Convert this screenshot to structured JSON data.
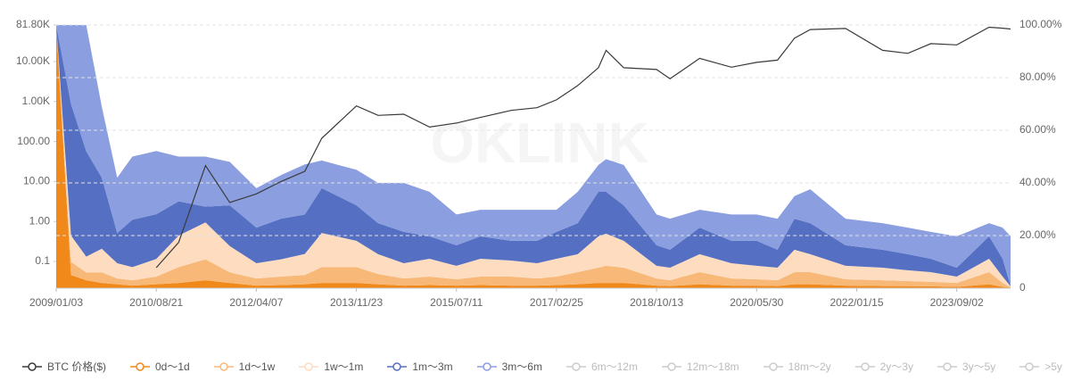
{
  "chart_data": {
    "type": "area",
    "watermark": "OKLINK",
    "x": [
      "2009/01/03",
      "2009/04/01",
      "2009/07/01",
      "2009/10/01",
      "2010/01/01",
      "2010/04/01",
      "2010/08/21",
      "2011/01/01",
      "2011/06/10",
      "2011/11/01",
      "2012/04/07",
      "2012/09/01",
      "2013/01/20",
      "2013/05/01",
      "2013/11/23",
      "2014/04/01",
      "2014/09/01",
      "2015/02/01",
      "2015/07/11",
      "2015/12/01",
      "2016/06/01",
      "2016/11/01",
      "2017/02/25",
      "2017/07/01",
      "2017/11/01",
      "2017/12/17",
      "2018/04/01",
      "2018/10/13",
      "2019/01/01",
      "2019/06/26",
      "2020/01/01",
      "2020/05/30",
      "2020/10/01",
      "2021/01/10",
      "2021/04/14",
      "2021/11/10",
      "2022/06/18",
      "2022/11/15",
      "2023/04/01",
      "2023/09/02",
      "2024/03/12",
      "2024/06/01",
      "2024/07/18"
    ],
    "xlim": [
      "2009/01/03",
      "2024/07/18"
    ],
    "xticks": [
      "2009/01/03",
      "2010/08/21",
      "2012/04/07",
      "2013/11/23",
      "2015/07/11",
      "2017/02/25",
      "2018/10/13",
      "2020/05/30",
      "2022/01/15",
      "2023/09/02"
    ],
    "log_y": true,
    "ylim": [
      0.0215,
      81800
    ],
    "yticks": [
      0.1,
      {
        "value": 1,
        "label": "1.00"
      },
      {
        "value": 10,
        "label": "10.00"
      },
      {
        "value": 100,
        "label": "100.00"
      },
      {
        "value": 1000,
        "label": "1.00K"
      },
      {
        "value": 10000,
        "label": "10.00K"
      },
      {
        "value": 81800,
        "label": "81.80K"
      }
    ],
    "y2lim": [
      0,
      100
    ],
    "y2ticks": [
      0,
      {
        "value": 20,
        "label": "20.00%"
      },
      {
        "value": 40,
        "label": "40.00%"
      },
      {
        "value": 60,
        "label": "60.00%"
      },
      {
        "value": 80,
        "label": "80.00%"
      },
      {
        "value": 100,
        "label": "100.00%"
      }
    ],
    "grid": true,
    "series": [
      {
        "name": "BTC 价格($)",
        "color": "#3a3a3a",
        "axis": "y",
        "values": [
          null,
          null,
          null,
          null,
          null,
          null,
          0.07,
          0.3,
          25,
          3,
          4.9,
          10,
          18,
          120,
          775,
          450,
          480,
          230,
          290,
          400,
          600,
          700,
          1100,
          2500,
          7000,
          19000,
          7000,
          6300,
          3700,
          12000,
          7200,
          9500,
          10800,
          38000,
          63000,
          67000,
          19000,
          16000,
          28000,
          26000,
          72000,
          68000,
          65000
        ]
      },
      {
        "name": "0d～1d",
        "color": "#f0881a",
        "axis": "y2",
        "values": [
          100,
          5,
          3,
          2,
          1.5,
          1,
          1.5,
          2,
          3,
          2,
          1,
          1.2,
          1.5,
          2,
          2,
          1.5,
          1,
          1.2,
          1,
          1.2,
          1,
          1,
          1.2,
          1.5,
          2,
          2,
          2,
          1,
          0.8,
          1.5,
          1,
          1,
          0.8,
          1.5,
          1.5,
          1,
          0.8,
          0.8,
          0.7,
          0.5,
          1.5,
          0.5,
          0.2
        ]
      },
      {
        "name": "1d～1w",
        "color": "#f7b878",
        "axis": "y2",
        "values": [
          0,
          5,
          3,
          4,
          2.2,
          2,
          2.9,
          6,
          8,
          4,
          2.7,
          3.2,
          3.5,
          6,
          6,
          3.9,
          2.7,
          3.2,
          2.4,
          3.2,
          3.4,
          2.7,
          3.2,
          4.6,
          5.8,
          6.5,
          5.8,
          2.7,
          2.2,
          4.6,
          2.7,
          2.4,
          2.2,
          4.6,
          4.6,
          2.4,
          2.2,
          1.9,
          1.7,
          1.5,
          4.6,
          1.5,
          0.2
        ]
      },
      {
        "name": "1w～1m",
        "color": "#fddcc0",
        "axis": "y2",
        "values": [
          0,
          10,
          6,
          9,
          5.8,
          5,
          6.7,
          12,
          14,
          10,
          5.8,
          6.6,
          8,
          13,
          10,
          7.5,
          5.8,
          6.8,
          5.1,
          6.8,
          6.1,
          5.8,
          6.8,
          6.8,
          11.9,
          12.2,
          10.2,
          4.8,
          4.8,
          6.8,
          5.8,
          5.1,
          4.8,
          8.5,
          6.8,
          5.1,
          4.8,
          4.1,
          3.7,
          2.4,
          5.1,
          2.4,
          0.3
        ]
      },
      {
        "name": "1m～3m",
        "color": "#5570c2",
        "axis": "y2",
        "values": [
          0,
          50,
          40,
          27,
          11.5,
          18,
          17,
          13,
          6,
          15.5,
          13.5,
          15.4,
          15,
          17,
          13.5,
          11.8,
          11.9,
          8.5,
          7.8,
          8.5,
          7.5,
          8.5,
          10.2,
          11.8,
          16.9,
          15.9,
          13.5,
          7.8,
          6.8,
          10.1,
          8.5,
          9.5,
          6.8,
          11.8,
          11.8,
          7.8,
          6.8,
          6.1,
          5.1,
          3.4,
          8.5,
          6.8,
          0.3
        ]
      },
      {
        "name": "3m～6m",
        "color": "#8a9ee0",
        "axis": "y2",
        "values": [
          0,
          30,
          48,
          27,
          21,
          24,
          24,
          17,
          19,
          16.5,
          15,
          16.6,
          19,
          10.5,
          13.5,
          15.3,
          18.6,
          16.9,
          11.7,
          10.1,
          11.8,
          11.8,
          8.4,
          11.9,
          10.2,
          12.4,
          15.3,
          11.7,
          11.8,
          6.8,
          10,
          10,
          11.8,
          8.6,
          12.9,
          10.1,
          10.1,
          10.1,
          10.2,
          11.9,
          5,
          11.8,
          18.7
        ]
      }
    ],
    "inactive_series": [
      {
        "name": "6m～12m",
        "color": "#cccccc"
      },
      {
        "name": "12m～18m",
        "color": "#cccccc"
      },
      {
        "name": "18m～2y",
        "color": "#cccccc"
      },
      {
        "name": "2y～3y",
        "color": "#cccccc"
      },
      {
        "name": "3y～5y",
        "color": "#cccccc"
      },
      {
        "name": ">5y",
        "color": "#cccccc"
      }
    ]
  }
}
